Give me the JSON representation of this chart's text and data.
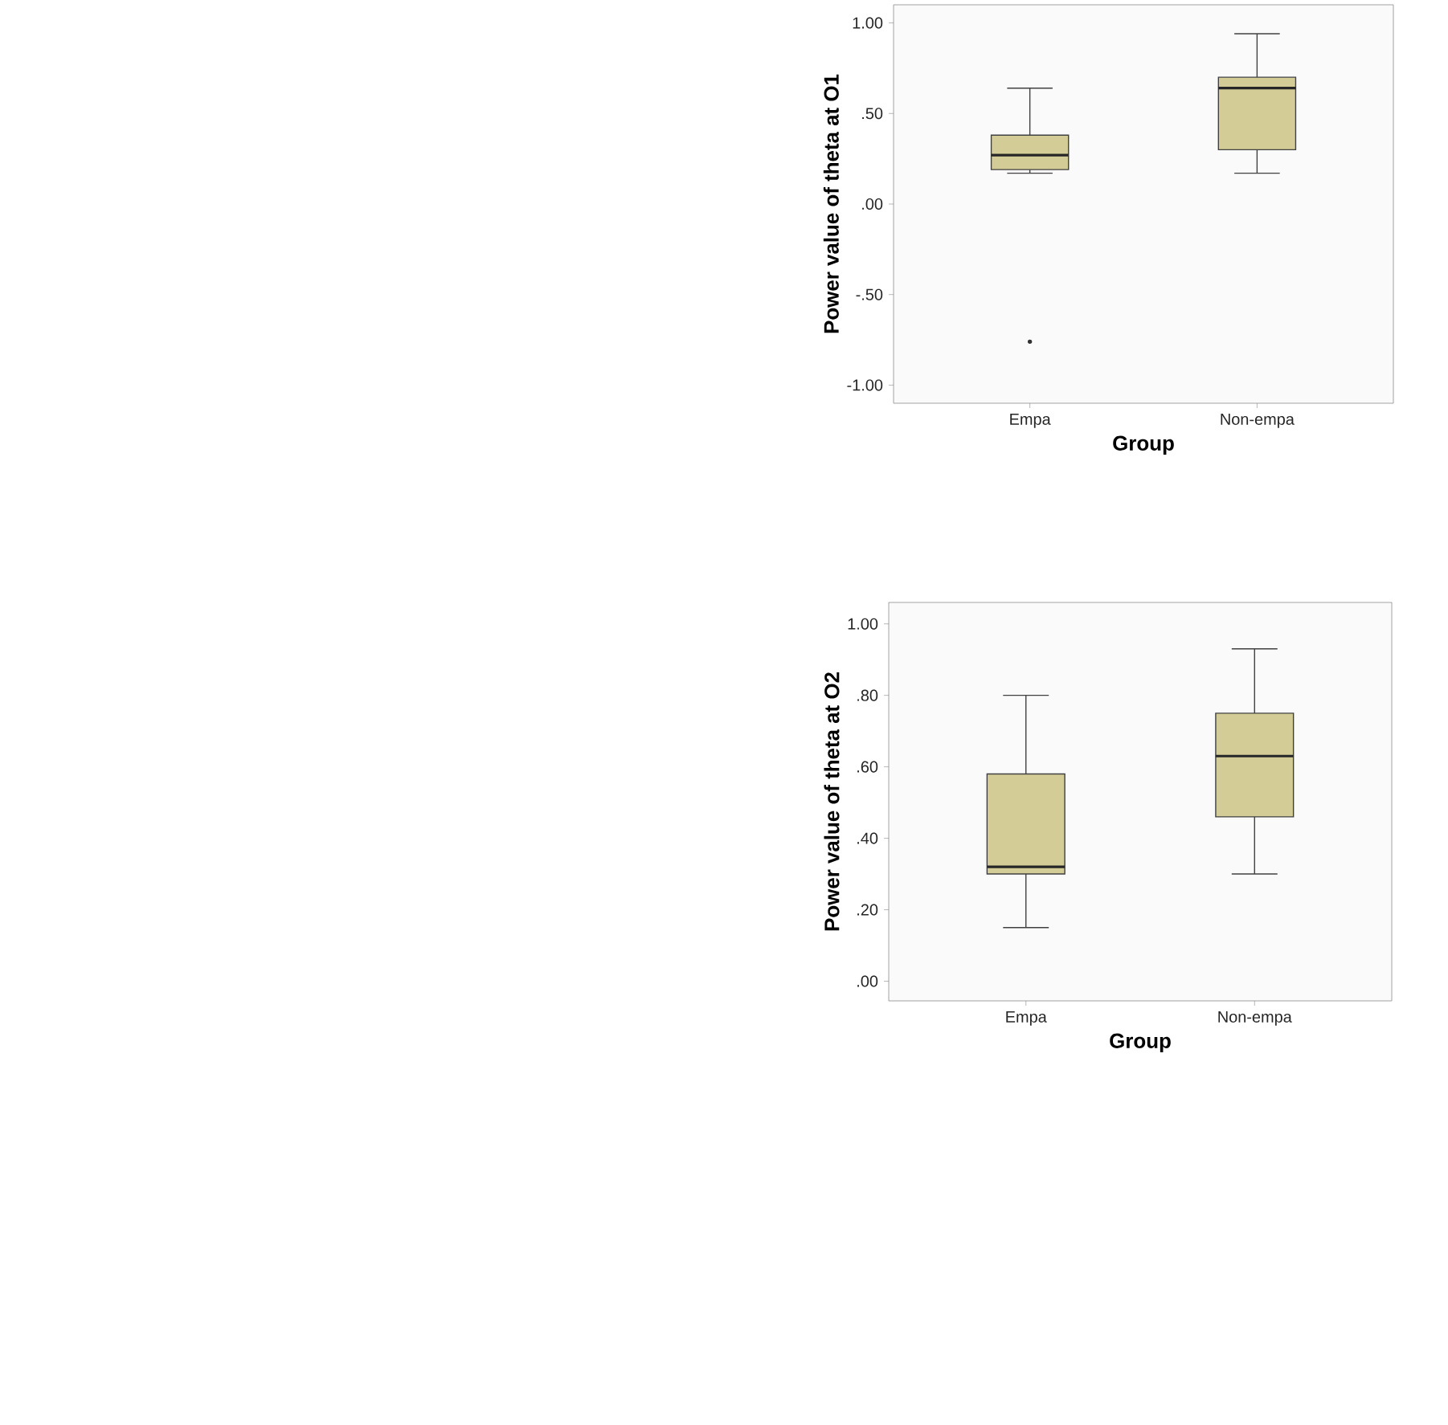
{
  "chart_data": [
    {
      "type": "box",
      "categories": [
        "Empa",
        "Non-empa"
      ],
      "xlabel": "Group",
      "ylabel": "Power value of theta at O1",
      "ylim": [
        -1.1,
        1.1
      ],
      "yticks": [
        {
          "value": -1,
          "label": "-1.00"
        },
        {
          "value": -0.5,
          "label": "-.50"
        },
        {
          "value": 0,
          "label": ".00"
        },
        {
          "value": 0.5,
          "label": ".50"
        },
        {
          "value": 1,
          "label": "1.00"
        }
      ],
      "series": [
        {
          "color": "#d3cc97",
          "boxes": [
            {
              "low": 0.17,
              "q1": 0.19,
              "median": 0.27,
              "q3": 0.38,
              "high": 0.64,
              "outliers": [
                -0.76
              ]
            },
            {
              "low": 0.17,
              "q1": 0.3,
              "median": 0.64,
              "q3": 0.7,
              "high": 0.94
            }
          ]
        }
      ]
    },
    {
      "type": "box",
      "categories": [
        "Empa",
        "Non-empa"
      ],
      "xlabel": "Group",
      "ylabel": "Power value of theta at O2",
      "ylim": [
        -0.055,
        1.06
      ],
      "yticks": [
        {
          "value": 0,
          "label": ".00"
        },
        {
          "value": 0.2,
          "label": ".20"
        },
        {
          "value": 0.4,
          "label": ".40"
        },
        {
          "value": 0.6,
          "label": ".60"
        },
        {
          "value": 0.8,
          "label": ".80"
        },
        {
          "value": 1,
          "label": "1.00"
        }
      ],
      "series": [
        {
          "color": "#d3cc97",
          "boxes": [
            {
              "low": 0.15,
              "q1": 0.3,
              "median": 0.32,
              "q3": 0.58,
              "high": 0.8
            },
            {
              "low": 0.3,
              "q1": 0.46,
              "median": 0.63,
              "q3": 0.75,
              "high": 0.93
            }
          ]
        }
      ]
    }
  ]
}
